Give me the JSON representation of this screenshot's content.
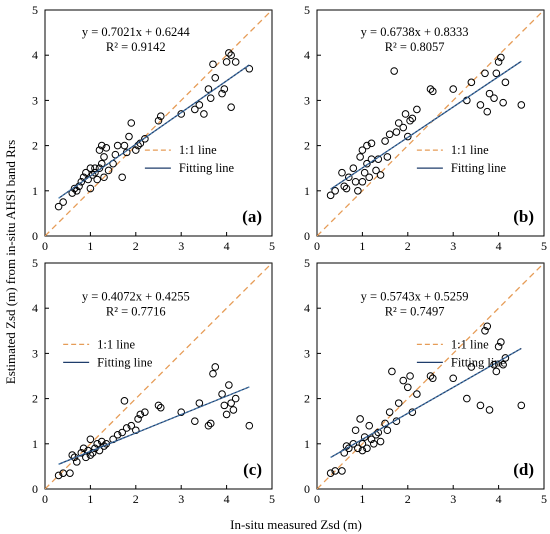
{
  "figure": {
    "ylabel": "Estimated Zsd (m) from in-situ AHSI band Rrs",
    "xlabel": "In-situ measured Zsd (m)"
  },
  "chart_data": [
    {
      "type": "scatter",
      "panel": "(a)",
      "equation": "y = 0.7021x + 0.6244",
      "r2": "R² = 0.9142",
      "legend": [
        "1:1 line",
        "Fitting line"
      ],
      "fit": {
        "slope": 0.7021,
        "intercept": 0.6244
      },
      "xlim": [
        0,
        5
      ],
      "ylim": [
        0,
        5
      ],
      "xticks": [
        "0",
        "1",
        "2",
        "3",
        "4",
        "5"
      ],
      "yticks": [
        "0",
        "1",
        "2",
        "3",
        "4",
        "5"
      ],
      "points": [
        [
          0.3,
          0.65
        ],
        [
          0.4,
          0.75
        ],
        [
          0.6,
          0.95
        ],
        [
          0.65,
          1.05
        ],
        [
          0.7,
          1.0
        ],
        [
          0.75,
          1.1
        ],
        [
          0.8,
          1.2
        ],
        [
          0.85,
          1.3
        ],
        [
          0.9,
          1.4
        ],
        [
          0.95,
          1.25
        ],
        [
          1.0,
          1.05
        ],
        [
          1.0,
          1.5
        ],
        [
          1.05,
          1.35
        ],
        [
          1.1,
          1.4
        ],
        [
          1.1,
          1.5
        ],
        [
          1.15,
          1.25
        ],
        [
          1.2,
          1.5
        ],
        [
          1.2,
          1.9
        ],
        [
          1.25,
          1.6
        ],
        [
          1.25,
          2.0
        ],
        [
          1.3,
          1.75
        ],
        [
          1.3,
          1.3
        ],
        [
          1.35,
          1.95
        ],
        [
          1.4,
          1.45
        ],
        [
          1.5,
          1.6
        ],
        [
          1.55,
          1.8
        ],
        [
          1.6,
          2.0
        ],
        [
          1.7,
          1.3
        ],
        [
          1.75,
          2.0
        ],
        [
          1.8,
          1.85
        ],
        [
          1.85,
          2.2
        ],
        [
          1.9,
          2.5
        ],
        [
          2.0,
          1.9
        ],
        [
          2.05,
          2.0
        ],
        [
          2.1,
          2.05
        ],
        [
          2.2,
          2.15
        ],
        [
          2.5,
          2.55
        ],
        [
          2.55,
          2.65
        ],
        [
          3.0,
          2.7
        ],
        [
          3.3,
          2.8
        ],
        [
          3.4,
          2.9
        ],
        [
          3.5,
          2.7
        ],
        [
          3.6,
          3.25
        ],
        [
          3.65,
          3.05
        ],
        [
          3.7,
          3.8
        ],
        [
          3.75,
          3.5
        ],
        [
          3.9,
          3.15
        ],
        [
          3.95,
          3.25
        ],
        [
          4.0,
          3.85
        ],
        [
          4.05,
          4.05
        ],
        [
          4.1,
          4.0
        ],
        [
          4.1,
          2.85
        ],
        [
          4.2,
          3.85
        ],
        [
          4.5,
          3.7
        ]
      ]
    },
    {
      "type": "scatter",
      "panel": "(b)",
      "equation": "y = 0.6738x + 0.8333",
      "r2": "R² = 0.8057",
      "legend": [
        "1:1 line",
        "Fitting line"
      ],
      "fit": {
        "slope": 0.6738,
        "intercept": 0.8333
      },
      "xlim": [
        0,
        5
      ],
      "ylim": [
        0,
        5
      ],
      "xticks": [
        "0",
        "1",
        "2",
        "3",
        "4",
        "5"
      ],
      "yticks": [
        "0",
        "1",
        "2",
        "3",
        "4",
        "5"
      ],
      "points": [
        [
          0.3,
          0.9
        ],
        [
          0.4,
          1.0
        ],
        [
          0.55,
          1.4
        ],
        [
          0.6,
          1.1
        ],
        [
          0.65,
          1.05
        ],
        [
          0.7,
          1.3
        ],
        [
          0.8,
          1.5
        ],
        [
          0.85,
          1.2
        ],
        [
          0.9,
          1.0
        ],
        [
          0.95,
          1.75
        ],
        [
          1.0,
          1.2
        ],
        [
          1.0,
          1.9
        ],
        [
          1.05,
          1.4
        ],
        [
          1.1,
          1.6
        ],
        [
          1.1,
          2.0
        ],
        [
          1.15,
          1.3
        ],
        [
          1.2,
          1.7
        ],
        [
          1.2,
          2.05
        ],
        [
          1.3,
          1.45
        ],
        [
          1.35,
          1.7
        ],
        [
          1.4,
          1.35
        ],
        [
          1.5,
          2.1
        ],
        [
          1.55,
          1.75
        ],
        [
          1.6,
          2.25
        ],
        [
          1.7,
          3.65
        ],
        [
          1.75,
          2.3
        ],
        [
          1.8,
          2.5
        ],
        [
          1.9,
          2.4
        ],
        [
          1.95,
          2.7
        ],
        [
          2.0,
          2.2
        ],
        [
          2.05,
          2.55
        ],
        [
          2.1,
          2.6
        ],
        [
          2.2,
          2.8
        ],
        [
          2.5,
          3.25
        ],
        [
          2.55,
          3.2
        ],
        [
          3.0,
          3.25
        ],
        [
          3.3,
          3.0
        ],
        [
          3.4,
          3.4
        ],
        [
          3.6,
          2.9
        ],
        [
          3.7,
          3.6
        ],
        [
          3.75,
          2.75
        ],
        [
          3.8,
          3.15
        ],
        [
          3.9,
          3.05
        ],
        [
          3.95,
          3.6
        ],
        [
          4.0,
          3.85
        ],
        [
          4.05,
          3.95
        ],
        [
          4.1,
          2.95
        ],
        [
          4.15,
          3.4
        ],
        [
          4.5,
          2.9
        ]
      ]
    },
    {
      "type": "scatter",
      "panel": "(c)",
      "equation": "y = 0.4072x + 0.4255",
      "r2": "R² = 0.7716",
      "legend": [
        "1:1 line",
        "Fitting line"
      ],
      "fit": {
        "slope": 0.4072,
        "intercept": 0.4255
      },
      "xlim": [
        0,
        5
      ],
      "ylim": [
        0,
        5
      ],
      "xticks": [
        "0",
        "1",
        "2",
        "3",
        "4",
        "5"
      ],
      "yticks": [
        "0",
        "1",
        "2",
        "3",
        "4",
        "5"
      ],
      "points": [
        [
          0.3,
          0.3
        ],
        [
          0.4,
          0.35
        ],
        [
          0.55,
          0.35
        ],
        [
          0.6,
          0.75
        ],
        [
          0.65,
          0.7
        ],
        [
          0.7,
          0.6
        ],
        [
          0.8,
          0.8
        ],
        [
          0.85,
          0.9
        ],
        [
          0.9,
          0.7
        ],
        [
          0.95,
          0.85
        ],
        [
          1.0,
          1.1
        ],
        [
          1.0,
          0.75
        ],
        [
          1.05,
          0.8
        ],
        [
          1.1,
          0.9
        ],
        [
          1.15,
          1.0
        ],
        [
          1.2,
          0.85
        ],
        [
          1.25,
          1.05
        ],
        [
          1.3,
          0.95
        ],
        [
          1.35,
          1.0
        ],
        [
          1.5,
          1.1
        ],
        [
          1.6,
          1.2
        ],
        [
          1.7,
          1.25
        ],
        [
          1.75,
          1.95
        ],
        [
          1.8,
          1.35
        ],
        [
          1.9,
          1.4
        ],
        [
          2.0,
          1.3
        ],
        [
          2.05,
          1.55
        ],
        [
          2.1,
          1.65
        ],
        [
          2.2,
          1.7
        ],
        [
          2.5,
          1.85
        ],
        [
          2.55,
          1.8
        ],
        [
          3.0,
          1.7
        ],
        [
          3.3,
          1.5
        ],
        [
          3.4,
          1.9
        ],
        [
          3.6,
          1.4
        ],
        [
          3.65,
          1.45
        ],
        [
          3.7,
          2.55
        ],
        [
          3.75,
          2.7
        ],
        [
          3.9,
          2.1
        ],
        [
          3.95,
          1.85
        ],
        [
          4.0,
          1.65
        ],
        [
          4.05,
          2.3
        ],
        [
          4.1,
          1.9
        ],
        [
          4.15,
          1.75
        ],
        [
          4.2,
          2.0
        ],
        [
          4.5,
          1.4
        ]
      ]
    },
    {
      "type": "scatter",
      "panel": "(d)",
      "equation": "y = 0.5743x + 0.5259",
      "r2": "R² = 0.7497",
      "legend": [
        "1:1 line",
        "Fitting line"
      ],
      "fit": {
        "slope": 0.5743,
        "intercept": 0.5259
      },
      "xlim": [
        0,
        5
      ],
      "ylim": [
        0,
        5
      ],
      "xticks": [
        "0",
        "1",
        "2",
        "3",
        "4",
        "5"
      ],
      "yticks": [
        "0",
        "1",
        "2",
        "3",
        "4",
        "5"
      ],
      "points": [
        [
          0.3,
          0.35
        ],
        [
          0.4,
          0.4
        ],
        [
          0.55,
          0.4
        ],
        [
          0.6,
          0.8
        ],
        [
          0.65,
          0.95
        ],
        [
          0.7,
          0.9
        ],
        [
          0.8,
          1.0
        ],
        [
          0.85,
          1.3
        ],
        [
          0.9,
          0.9
        ],
        [
          0.95,
          1.55
        ],
        [
          1.0,
          1.0
        ],
        [
          1.0,
          0.85
        ],
        [
          1.05,
          1.15
        ],
        [
          1.1,
          0.9
        ],
        [
          1.15,
          1.4
        ],
        [
          1.2,
          1.1
        ],
        [
          1.25,
          1.0
        ],
        [
          1.3,
          1.2
        ],
        [
          1.35,
          1.25
        ],
        [
          1.4,
          1.05
        ],
        [
          1.5,
          1.45
        ],
        [
          1.55,
          1.3
        ],
        [
          1.6,
          1.7
        ],
        [
          1.65,
          2.6
        ],
        [
          1.75,
          1.5
        ],
        [
          1.8,
          1.9
        ],
        [
          1.9,
          2.4
        ],
        [
          2.0,
          2.25
        ],
        [
          2.05,
          2.5
        ],
        [
          2.1,
          1.7
        ],
        [
          2.2,
          2.1
        ],
        [
          2.5,
          2.5
        ],
        [
          2.55,
          2.45
        ],
        [
          3.0,
          2.45
        ],
        [
          3.3,
          2.0
        ],
        [
          3.4,
          2.7
        ],
        [
          3.6,
          1.85
        ],
        [
          3.7,
          3.5
        ],
        [
          3.75,
          3.6
        ],
        [
          3.8,
          1.75
        ],
        [
          3.9,
          2.75
        ],
        [
          3.95,
          2.6
        ],
        [
          4.0,
          3.15
        ],
        [
          4.05,
          3.25
        ],
        [
          4.1,
          2.75
        ],
        [
          4.15,
          2.9
        ],
        [
          4.5,
          1.85
        ]
      ]
    }
  ],
  "colors": {
    "one_to_one": "#e69c57",
    "fit_line": "#1f3d6b",
    "points": "#000000"
  }
}
